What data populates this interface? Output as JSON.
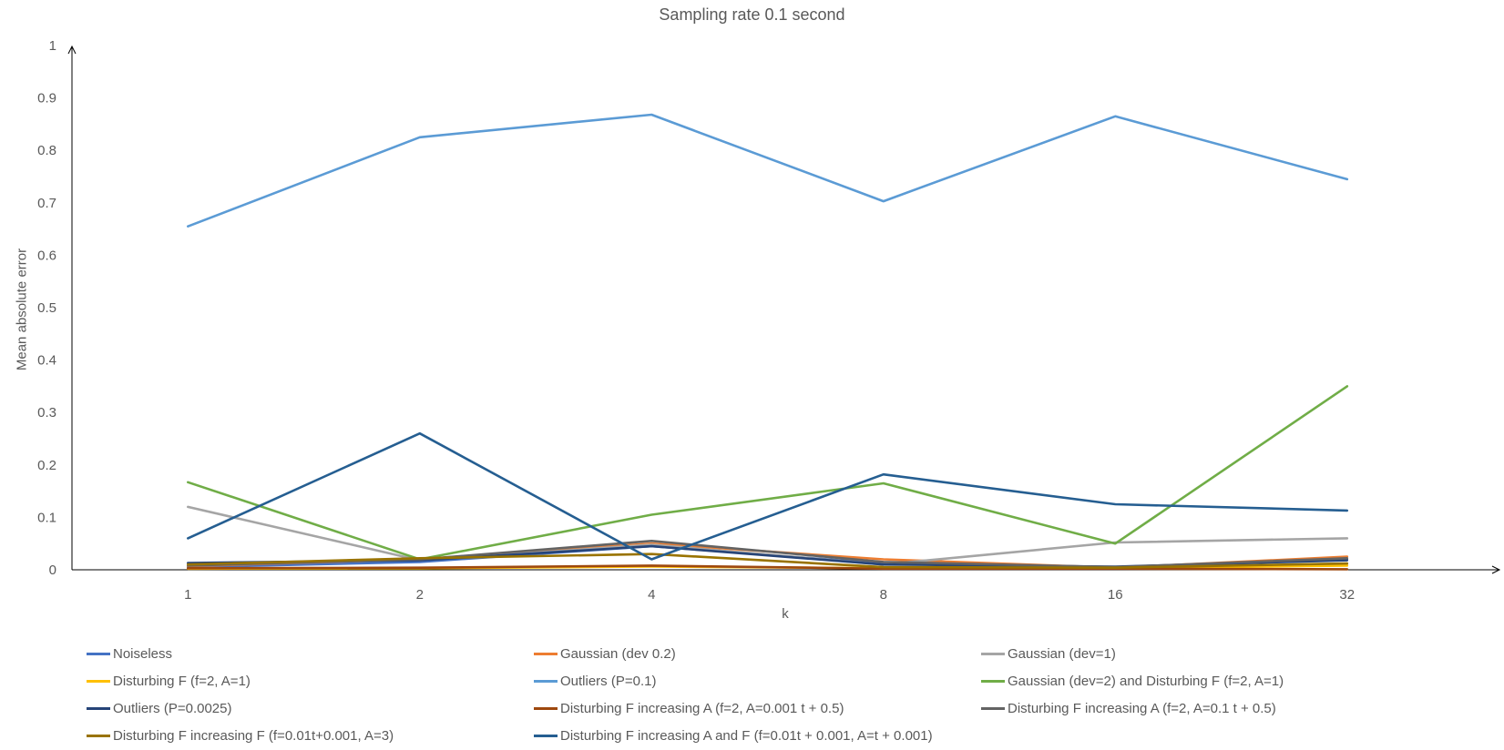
{
  "chart_data": {
    "type": "line",
    "title": "Sampling rate 0.1 second",
    "xlabel": "k",
    "ylabel": "Mean absolute error",
    "categories": [
      "1",
      "2",
      "4",
      "8",
      "16",
      "32"
    ],
    "ylim": [
      0,
      1
    ],
    "yticks": [
      "0",
      "0.1",
      "0.2",
      "0.3",
      "0.4",
      "0.5",
      "0.6",
      "0.7",
      "0.8",
      "0.9",
      "1"
    ],
    "grid": false,
    "legend_position": "bottom",
    "series": [
      {
        "name": "Noiseless",
        "color": "#4472C4",
        "values": [
          0.005,
          0.015,
          0.045,
          0.012,
          0.004,
          0.02
        ]
      },
      {
        "name": "Gaussian (dev 0.2)",
        "color": "#ED7D31",
        "values": [
          0.007,
          0.02,
          0.05,
          0.02,
          0.004,
          0.025
        ]
      },
      {
        "name": "Gaussian (dev=1)",
        "color": "#A5A5A5",
        "values": [
          0.12,
          0.018,
          0.048,
          0.01,
          0.052,
          0.06
        ]
      },
      {
        "name": "Disturbing F (f=2, A=1)",
        "color": "#FFC000",
        "values": [
          0.002,
          0.003,
          0.006,
          0.003,
          0.003,
          0.008
        ]
      },
      {
        "name": "Outliers (P=0.1)",
        "color": "#5B9BD5",
        "values": [
          0.655,
          0.825,
          0.868,
          0.703,
          0.865,
          0.745
        ]
      },
      {
        "name": "Gaussian (dev=2) and Disturbing F (f=2, A=1)",
        "color": "#70AD47",
        "values": [
          0.167,
          0.02,
          0.105,
          0.165,
          0.05,
          0.35
        ]
      },
      {
        "name": "Outliers (P=0.0025)",
        "color": "#264478",
        "values": [
          0.013,
          0.018,
          0.045,
          0.01,
          0.006,
          0.018
        ]
      },
      {
        "name": "Disturbing F increasing A (f=2, A=0.001 t + 0.5)",
        "color": "#9E480E",
        "values": [
          0.003,
          0.004,
          0.008,
          0.002,
          0.002,
          0.001
        ]
      },
      {
        "name": "Disturbing F increasing A (f=2, A=0.1 t + 0.5)",
        "color": "#636363",
        "values": [
          0.008,
          0.02,
          0.055,
          0.015,
          0.005,
          0.022
        ]
      },
      {
        "name": "Disturbing F increasing F (f=0.01t+0.001, A=3)",
        "color": "#997300",
        "values": [
          0.01,
          0.022,
          0.03,
          0.005,
          0.004,
          0.012
        ]
      },
      {
        "name": "Disturbing F increasing A and F (f=0.01t + 0.001, A=t + 0.001)",
        "color": "#255E91",
        "values": [
          0.06,
          0.26,
          0.02,
          0.182,
          0.125,
          0.113
        ]
      }
    ]
  }
}
